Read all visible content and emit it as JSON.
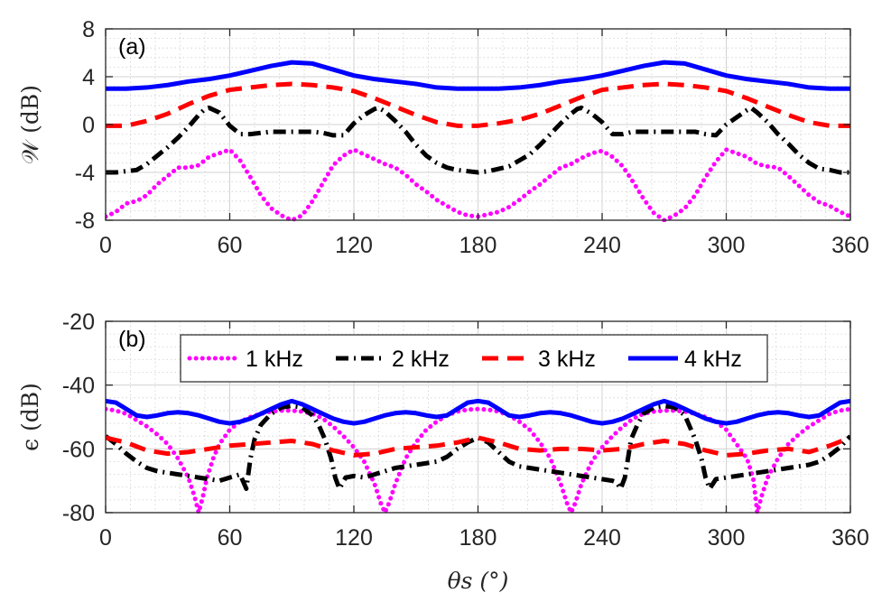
{
  "chart_data": [
    {
      "type": "line",
      "panel_label": "(a)",
      "ylabel": "𝒲 (dB)",
      "xlim": [
        0,
        360
      ],
      "ylim": [
        -8,
        8
      ],
      "xticks": [
        "0",
        "60",
        "120",
        "180",
        "240",
        "300",
        "360"
      ],
      "yticks": [
        "-8",
        "-4",
        "0",
        "4",
        "8"
      ],
      "grid": true,
      "series": [
        {
          "name": "1 kHz",
          "color": "#ff00ff",
          "style": "dotted",
          "x": [
            0,
            5,
            10,
            15,
            20,
            25,
            30,
            35,
            40,
            45,
            50,
            55,
            60,
            65,
            70,
            75,
            80,
            85,
            90,
            95,
            100,
            105,
            110,
            115,
            120,
            125,
            130,
            135,
            140,
            145,
            150,
            155,
            160,
            165,
            170,
            175,
            180,
            185,
            190,
            195,
            200,
            205,
            210,
            215,
            220,
            225,
            230,
            235,
            240,
            245,
            250,
            255,
            260,
            265,
            270,
            275,
            280,
            285,
            290,
            295,
            300,
            305,
            310,
            315,
            320,
            325,
            330,
            335,
            340,
            345,
            350,
            355,
            360
          ],
          "y": [
            -7.7,
            -7.3,
            -6.6,
            -6.4,
            -5.9,
            -5.0,
            -4.3,
            -3.6,
            -3.6,
            -3.4,
            -2.7,
            -2.4,
            -2.1,
            -3.0,
            -4.4,
            -5.9,
            -7.0,
            -7.6,
            -8.0,
            -7.6,
            -6.4,
            -4.9,
            -3.4,
            -2.6,
            -2.1,
            -2.5,
            -2.9,
            -3.3,
            -3.6,
            -4.2,
            -5.0,
            -5.6,
            -6.3,
            -6.8,
            -7.3,
            -7.6,
            -7.7,
            -7.5,
            -7.3,
            -6.9,
            -6.3,
            -5.6,
            -5.0,
            -4.3,
            -3.6,
            -3.3,
            -2.8,
            -2.4,
            -2.2,
            -2.7,
            -3.5,
            -4.8,
            -6.2,
            -7.4,
            -8.0,
            -7.6,
            -7.0,
            -5.9,
            -4.4,
            -3.1,
            -2.1,
            -2.4,
            -2.7,
            -3.3,
            -3.5,
            -3.6,
            -4.3,
            -5.1,
            -5.9,
            -6.5,
            -6.8,
            -7.3,
            -7.7
          ]
        },
        {
          "name": "2 kHz",
          "color": "#000000",
          "style": "dashdot",
          "x": [
            0,
            5,
            10,
            15,
            20,
            25,
            30,
            35,
            40,
            45,
            48,
            50,
            55,
            60,
            65,
            70,
            75,
            80,
            85,
            90,
            95,
            100,
            105,
            110,
            115,
            120,
            125,
            130,
            132,
            135,
            140,
            145,
            150,
            155,
            160,
            165,
            170,
            175,
            180,
            185,
            190,
            195,
            200,
            205,
            210,
            215,
            220,
            225,
            228,
            230,
            235,
            240,
            245,
            250,
            255,
            260,
            265,
            270,
            275,
            280,
            285,
            290,
            295,
            300,
            305,
            310,
            312,
            315,
            320,
            325,
            330,
            335,
            340,
            345,
            350,
            355,
            360
          ],
          "y": [
            -4.0,
            -4.0,
            -3.9,
            -3.8,
            -3.3,
            -2.6,
            -1.9,
            -1.1,
            -0.2,
            0.8,
            1.3,
            1.4,
            1.0,
            -0.1,
            -0.8,
            -0.8,
            -0.7,
            -0.6,
            -0.6,
            -0.6,
            -0.6,
            -0.6,
            -0.7,
            -0.9,
            -0.9,
            0.1,
            0.8,
            1.3,
            1.4,
            1.1,
            0.3,
            -0.6,
            -1.7,
            -2.6,
            -3.2,
            -3.6,
            -3.8,
            -3.9,
            -4.0,
            -3.9,
            -3.7,
            -3.5,
            -3.0,
            -2.5,
            -1.7,
            -0.8,
            0.1,
            0.9,
            1.3,
            1.4,
            0.9,
            0.2,
            -0.8,
            -0.8,
            -0.6,
            -0.6,
            -0.6,
            -0.6,
            -0.6,
            -0.6,
            -0.6,
            -0.8,
            -0.9,
            0.0,
            0.6,
            1.2,
            1.4,
            1.0,
            0.2,
            -0.8,
            -1.6,
            -2.5,
            -3.2,
            -3.7,
            -3.8,
            -4.0,
            -4.0
          ]
        },
        {
          "name": "3 kHz",
          "color": "#ff0000",
          "style": "dashed",
          "x": [
            0,
            10,
            20,
            30,
            40,
            50,
            60,
            70,
            80,
            90,
            100,
            110,
            120,
            130,
            140,
            150,
            160,
            170,
            180,
            190,
            200,
            210,
            220,
            230,
            240,
            250,
            260,
            270,
            280,
            290,
            300,
            310,
            320,
            330,
            340,
            350,
            360
          ],
          "y": [
            -0.1,
            -0.1,
            0.3,
            0.9,
            1.7,
            2.4,
            2.9,
            3.1,
            3.3,
            3.4,
            3.3,
            3.1,
            2.8,
            2.2,
            1.5,
            0.8,
            0.2,
            -0.1,
            -0.1,
            0.1,
            0.4,
            0.9,
            1.6,
            2.3,
            2.9,
            3.1,
            3.3,
            3.4,
            3.3,
            3.1,
            2.8,
            2.2,
            1.5,
            0.8,
            0.2,
            -0.1,
            -0.1
          ]
        },
        {
          "name": "4 kHz",
          "color": "#0000ff",
          "style": "solid",
          "x": [
            0,
            10,
            20,
            30,
            40,
            50,
            60,
            70,
            80,
            90,
            100,
            110,
            120,
            130,
            140,
            150,
            160,
            170,
            180,
            190,
            200,
            210,
            220,
            230,
            240,
            250,
            260,
            270,
            280,
            290,
            300,
            310,
            320,
            330,
            340,
            350,
            360
          ],
          "y": [
            3.0,
            3.0,
            3.1,
            3.3,
            3.6,
            3.8,
            4.1,
            4.5,
            4.9,
            5.2,
            5.1,
            4.6,
            4.1,
            3.8,
            3.6,
            3.4,
            3.1,
            3.0,
            3.0,
            3.0,
            3.1,
            3.3,
            3.6,
            3.8,
            4.1,
            4.5,
            4.9,
            5.2,
            5.1,
            4.6,
            4.1,
            3.8,
            3.6,
            3.4,
            3.1,
            3.0,
            3.0
          ]
        }
      ]
    },
    {
      "type": "line",
      "panel_label": "(b)",
      "ylabel": "ϵ (dB)",
      "xlabel": "θs (°)",
      "xlim": [
        0,
        360
      ],
      "ylim": [
        -80,
        -20
      ],
      "xticks": [
        "0",
        "60",
        "120",
        "180",
        "240",
        "300",
        "360"
      ],
      "yticks": [
        "-80",
        "-60",
        "-40",
        "-20"
      ],
      "grid": true,
      "legend": [
        "1 kHz",
        "2 kHz",
        "3 kHz",
        "4 kHz"
      ],
      "legend_position": "top",
      "series": [
        {
          "name": "1 kHz",
          "color": "#ff00ff",
          "style": "dotted",
          "x": [
            0,
            5,
            10,
            15,
            20,
            25,
            30,
            35,
            40,
            43,
            45,
            47,
            49,
            52,
            55,
            60,
            65,
            70,
            75,
            80,
            85,
            90,
            95,
            100,
            105,
            110,
            115,
            120,
            125,
            130,
            133,
            135,
            137,
            140,
            145,
            150,
            155,
            160,
            165,
            170,
            175,
            180,
            185,
            190,
            195,
            200,
            205,
            210,
            215,
            220,
            223,
            225,
            227,
            230,
            235,
            240,
            245,
            250,
            255,
            260,
            265,
            270,
            275,
            280,
            285,
            290,
            295,
            300,
            305,
            310,
            313,
            315,
            317,
            320,
            325,
            330,
            335,
            340,
            345,
            350,
            355,
            360
          ],
          "y": [
            -47.5,
            -48.0,
            -49.0,
            -51.0,
            -53.0,
            -55.5,
            -58.5,
            -63.0,
            -69.0,
            -75.0,
            -80.0,
            -75.0,
            -69.0,
            -63.0,
            -58.5,
            -54.0,
            -51.5,
            -50.0,
            -49.0,
            -48.3,
            -48.0,
            -48.0,
            -48.3,
            -49.0,
            -50.5,
            -53.0,
            -56.0,
            -59.5,
            -64.0,
            -71.0,
            -77.0,
            -80.0,
            -77.0,
            -71.0,
            -63.0,
            -58.0,
            -54.0,
            -51.5,
            -49.5,
            -48.3,
            -47.7,
            -47.5,
            -47.7,
            -48.3,
            -49.5,
            -51.5,
            -54.0,
            -58.0,
            -63.0,
            -71.0,
            -77.0,
            -80.0,
            -77.0,
            -71.0,
            -64.0,
            -59.5,
            -56.0,
            -53.0,
            -50.5,
            -49.0,
            -48.3,
            -48.0,
            -48.0,
            -48.3,
            -49.0,
            -50.0,
            -51.5,
            -54.0,
            -58.5,
            -63.0,
            -69.0,
            -80.0,
            -75.0,
            -69.0,
            -63.0,
            -58.5,
            -55.5,
            -53.0,
            -51.0,
            -49.0,
            -48.0,
            -47.5
          ]
        },
        {
          "name": "2 kHz",
          "color": "#000000",
          "style": "dashdot",
          "x": [
            0,
            5,
            10,
            15,
            20,
            25,
            30,
            35,
            40,
            45,
            50,
            55,
            60,
            65,
            68,
            70,
            72,
            75,
            80,
            85,
            90,
            95,
            100,
            103,
            106,
            109,
            111,
            113,
            116,
            120,
            125,
            130,
            135,
            140,
            145,
            150,
            155,
            160,
            165,
            170,
            175,
            180,
            185,
            190,
            195,
            200,
            205,
            210,
            215,
            220,
            225,
            230,
            235,
            240,
            245,
            247,
            249,
            251,
            254,
            257,
            260,
            265,
            270,
            275,
            280,
            285,
            288,
            290,
            292,
            295,
            300,
            305,
            310,
            315,
            320,
            325,
            330,
            335,
            340,
            345,
            350,
            355,
            360
          ],
          "y": [
            -56.0,
            -58.5,
            -61.5,
            -64.0,
            -66.0,
            -67.0,
            -67.5,
            -68.0,
            -68.5,
            -69.0,
            -69.5,
            -70.0,
            -69.0,
            -68.0,
            -72.5,
            -63.0,
            -57.0,
            -52.5,
            -49.0,
            -47.0,
            -46.5,
            -47.0,
            -49.5,
            -52.5,
            -57.0,
            -63.0,
            -69.0,
            -72.5,
            -69.0,
            -68.5,
            -69.0,
            -68.0,
            -67.0,
            -66.0,
            -65.5,
            -65.0,
            -64.5,
            -64.0,
            -62.5,
            -60.0,
            -58.0,
            -56.5,
            -58.0,
            -61.0,
            -64.0,
            -65.5,
            -66.0,
            -66.5,
            -67.0,
            -67.5,
            -68.0,
            -68.5,
            -69.0,
            -69.5,
            -70.0,
            -70.5,
            -72.5,
            -69.0,
            -57.0,
            -52.5,
            -49.0,
            -47.0,
            -46.5,
            -47.0,
            -49.5,
            -57.0,
            -63.0,
            -69.0,
            -72.5,
            -69.5,
            -69.0,
            -68.5,
            -68.0,
            -67.5,
            -67.0,
            -66.5,
            -66.0,
            -65.5,
            -65.0,
            -64.0,
            -62.0,
            -59.5,
            -56.0
          ]
        },
        {
          "name": "3 kHz",
          "color": "#ff0000",
          "style": "dashed",
          "x": [
            0,
            10,
            20,
            30,
            40,
            50,
            60,
            70,
            80,
            90,
            100,
            110,
            120,
            130,
            140,
            150,
            160,
            170,
            180,
            190,
            200,
            210,
            220,
            230,
            240,
            250,
            260,
            270,
            280,
            290,
            300,
            310,
            320,
            330,
            340,
            350,
            360
          ],
          "y": [
            -56.5,
            -58.0,
            -60.5,
            -61.5,
            -61.0,
            -60.0,
            -59.0,
            -58.5,
            -58.0,
            -57.5,
            -58.5,
            -60.5,
            -62.0,
            -61.5,
            -60.0,
            -59.5,
            -59.0,
            -58.0,
            -56.5,
            -58.0,
            -60.0,
            -60.5,
            -60.0,
            -60.0,
            -60.5,
            -60.0,
            -58.5,
            -57.5,
            -58.5,
            -60.5,
            -62.0,
            -61.5,
            -60.5,
            -60.0,
            -61.0,
            -59.0,
            -56.5
          ]
        },
        {
          "name": "4 kHz",
          "color": "#0000ff",
          "style": "solid",
          "x": [
            0,
            5,
            10,
            15,
            20,
            25,
            30,
            35,
            40,
            45,
            50,
            55,
            60,
            65,
            70,
            75,
            80,
            85,
            90,
            95,
            100,
            105,
            110,
            115,
            120,
            125,
            130,
            135,
            140,
            145,
            150,
            155,
            160,
            165,
            170,
            175,
            180,
            185,
            190,
            195,
            200,
            205,
            210,
            215,
            220,
            225,
            230,
            235,
            240,
            245,
            250,
            255,
            260,
            265,
            270,
            275,
            280,
            285,
            290,
            295,
            300,
            305,
            310,
            315,
            320,
            325,
            330,
            335,
            340,
            345,
            350,
            355,
            360
          ],
          "y": [
            -45.0,
            -45.5,
            -47.5,
            -49.5,
            -50.0,
            -49.5,
            -48.8,
            -48.5,
            -48.8,
            -49.5,
            -50.5,
            -51.5,
            -52.0,
            -51.5,
            -50.5,
            -49.0,
            -47.5,
            -46.0,
            -45.0,
            -46.0,
            -47.5,
            -49.0,
            -50.5,
            -51.5,
            -52.0,
            -51.5,
            -50.5,
            -49.5,
            -48.8,
            -48.5,
            -48.8,
            -49.5,
            -50.0,
            -49.5,
            -47.5,
            -45.5,
            -45.0,
            -45.5,
            -47.5,
            -49.5,
            -50.0,
            -49.5,
            -48.8,
            -48.5,
            -48.8,
            -49.5,
            -50.5,
            -51.5,
            -52.0,
            -51.5,
            -50.5,
            -49.0,
            -47.5,
            -46.0,
            -45.0,
            -46.0,
            -47.5,
            -49.0,
            -50.5,
            -51.5,
            -52.0,
            -51.5,
            -50.5,
            -49.5,
            -48.8,
            -48.5,
            -48.8,
            -49.5,
            -50.0,
            -49.5,
            -47.5,
            -45.5,
            -45.0
          ]
        }
      ]
    }
  ]
}
